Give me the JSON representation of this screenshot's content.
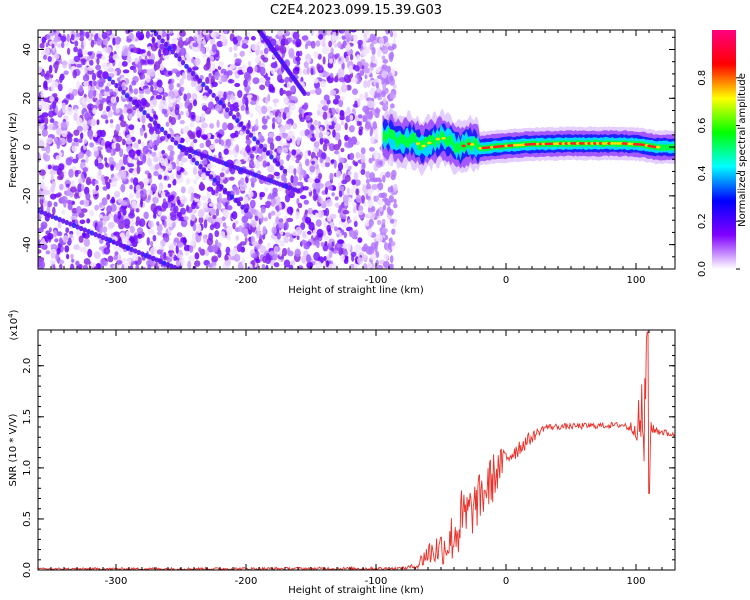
{
  "title": "C2E4.2023.099.15.39.G03",
  "colorbar": {
    "label": "Normalized spectral amplitude",
    "range": [
      0.0,
      1.0
    ],
    "ticks": [
      "0.0",
      "0.2",
      "0.4",
      "0.6",
      "0.8"
    ],
    "tick_values": [
      0.0,
      0.2,
      0.4,
      0.6,
      0.8
    ],
    "colormap": [
      "#ffffff",
      "#8000ff",
      "#0000ff",
      "#00ffff",
      "#00ff00",
      "#ffff00",
      "#ff0000",
      "#ff0080"
    ]
  },
  "chart_data": [
    {
      "type": "heatmap",
      "title": "C2E4.2023.099.15.39.G03",
      "xlabel": "Height of straight line (km)",
      "ylabel": "Frequency (Hz)",
      "xlim": [
        -360,
        130
      ],
      "ylim": [
        -50,
        48
      ],
      "xticks": [
        -300,
        -200,
        -100,
        0,
        100
      ],
      "xtick_labels": [
        "-300",
        "-200",
        "-100",
        "0",
        "100"
      ],
      "yticks": [
        -40,
        -20,
        0,
        20,
        40
      ],
      "ytick_labels": [
        "-40",
        "-20",
        "0",
        "20",
        "40"
      ],
      "grid": false,
      "noise_region_x": [
        -360,
        -85
      ],
      "tone_region_x": [
        -95,
        130
      ],
      "tone_center_hz": [
        [
          -95,
          4
        ],
        [
          -90,
          4.5
        ],
        [
          -85,
          3.5
        ],
        [
          -80,
          2
        ],
        [
          -75,
          3
        ],
        [
          -70,
          2.5
        ],
        [
          -65,
          0
        ],
        [
          -60,
          1.5
        ],
        [
          -55,
          2.5
        ],
        [
          -50,
          4
        ],
        [
          -45,
          3
        ],
        [
          -40,
          0.5
        ],
        [
          -35,
          -0.5
        ],
        [
          -30,
          1.5
        ],
        [
          -25,
          1
        ],
        [
          -20,
          -0.5
        ],
        [
          -10,
          0
        ],
        [
          0,
          0.5
        ],
        [
          20,
          1.2
        ],
        [
          50,
          1.5
        ],
        [
          90,
          1.5
        ],
        [
          105,
          1
        ],
        [
          115,
          0
        ],
        [
          130,
          0
        ]
      ],
      "streaks": [
        {
          "x": [
            -272,
            -170
          ],
          "y": [
            48,
            -10
          ]
        },
        {
          "x": [
            -190,
            -155
          ],
          "y": [
            48,
            22
          ]
        },
        {
          "x": [
            -305,
            -200
          ],
          "y": [
            28,
            -26
          ]
        },
        {
          "x": [
            -360,
            -252
          ],
          "y": [
            -26,
            -50
          ]
        },
        {
          "x": [
            -250,
            -160
          ],
          "y": [
            0,
            -18
          ]
        }
      ]
    },
    {
      "type": "line",
      "xlabel": "Height of straight line (km)",
      "ylabel": "SNR (10 * V/V)",
      "y_multiplier_label": "(x10",
      "y_multiplier_exponent": "4",
      "y_multiplier_close": ")",
      "xlim": [
        -360,
        130
      ],
      "ylim": [
        0,
        2.35
      ],
      "xticks": [
        -300,
        -200,
        -100,
        0,
        100
      ],
      "xtick_labels": [
        "-300",
        "-200",
        "-100",
        "0",
        "100"
      ],
      "yticks": [
        0,
        0.5,
        1.0,
        1.5,
        2.0
      ],
      "ytick_labels": [
        "0.0",
        "0.5",
        "1.0",
        "1.5",
        "2.0"
      ],
      "grid": false,
      "series": [
        {
          "color": "#e8322b",
          "envelope": [
            {
              "x": -360,
              "y": 0.01,
              "amp": 0.01
            },
            {
              "x": -80,
              "y": 0.015,
              "amp": 0.015
            },
            {
              "x": -68,
              "y": 0.04,
              "amp": 0.03
            },
            {
              "x": -62,
              "y": 0.15,
              "amp": 0.12
            },
            {
              "x": -45,
              "y": 0.25,
              "amp": 0.2
            },
            {
              "x": -35,
              "y": 0.45,
              "amp": 0.35
            },
            {
              "x": -25,
              "y": 0.6,
              "amp": 0.25
            },
            {
              "x": -10,
              "y": 0.9,
              "amp": 0.25
            },
            {
              "x": 0,
              "y": 1.1,
              "amp": 0.12
            },
            {
              "x": 20,
              "y": 1.3,
              "amp": 0.06
            },
            {
              "x": 30,
              "y": 1.4,
              "amp": 0.03
            },
            {
              "x": 90,
              "y": 1.42,
              "amp": 0.03
            },
            {
              "x": 100,
              "y": 1.38,
              "amp": 0.08
            },
            {
              "x": 108,
              "y": 1.5,
              "amp": 0.8
            },
            {
              "x": 112,
              "y": 1.38,
              "amp": 0.05
            },
            {
              "x": 130,
              "y": 1.32,
              "amp": 0.02
            }
          ],
          "peak": {
            "x": 109,
            "y": 2.33
          },
          "trough": {
            "x": 109,
            "y": 0.75
          }
        }
      ]
    }
  ]
}
